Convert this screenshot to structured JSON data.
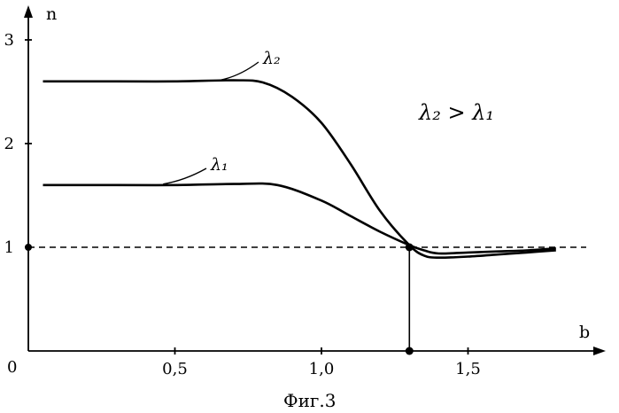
{
  "chart_data": {
    "type": "line",
    "xlabel": "b",
    "ylabel": "n",
    "origin_label": "0",
    "xlim": [
      0,
      1.9
    ],
    "ylim": [
      0,
      3.2
    ],
    "x_ticks": [
      {
        "value": 0.5,
        "label": "0,5"
      },
      {
        "value": 1.0,
        "label": "1,0"
      },
      {
        "value": 1.5,
        "label": "1,5"
      }
    ],
    "y_ticks": [
      {
        "value": 1,
        "label": "1"
      },
      {
        "value": 2,
        "label": "2"
      },
      {
        "value": 3,
        "label": "3"
      }
    ],
    "series": [
      {
        "name": "λ₂",
        "x": [
          0.05,
          0.3,
          0.5,
          0.7,
          0.8,
          0.9,
          1.0,
          1.1,
          1.2,
          1.3,
          1.35,
          1.4,
          1.5,
          1.6,
          1.7,
          1.8
        ],
        "y": [
          2.6,
          2.6,
          2.6,
          2.61,
          2.59,
          2.45,
          2.2,
          1.8,
          1.35,
          1.02,
          0.92,
          0.9,
          0.91,
          0.93,
          0.95,
          0.97
        ]
      },
      {
        "name": "λ₁",
        "x": [
          0.05,
          0.3,
          0.5,
          0.7,
          0.85,
          1.0,
          1.1,
          1.2,
          1.3,
          1.35,
          1.4,
          1.5,
          1.6,
          1.7,
          1.8
        ],
        "y": [
          1.6,
          1.6,
          1.6,
          1.61,
          1.6,
          1.45,
          1.3,
          1.15,
          1.02,
          0.97,
          0.94,
          0.95,
          0.96,
          0.97,
          0.99
        ]
      }
    ],
    "reference_line": {
      "y": 1
    },
    "marked_point": {
      "x": 1.3,
      "y": 1
    },
    "annotation": "λ₂ > λ₁",
    "caption": "Фиг.3"
  }
}
